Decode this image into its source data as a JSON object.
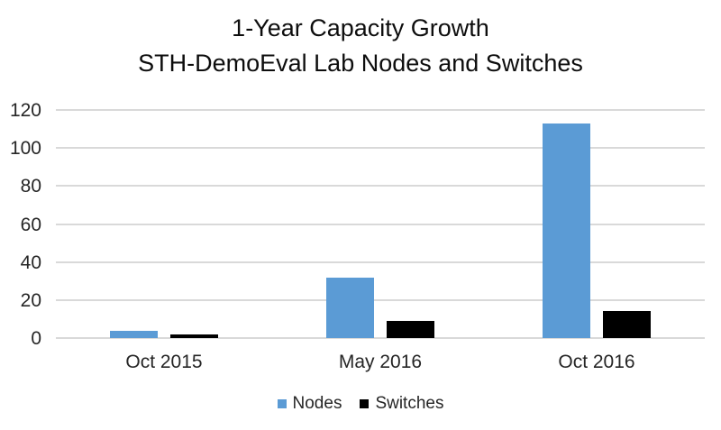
{
  "title": {
    "line1": "1-Year Capacity Growth",
    "line2": "STH-DemoEval Lab Nodes and Switches"
  },
  "chart_data": {
    "type": "bar",
    "title": "1-Year Capacity Growth STH-DemoEval Lab Nodes and Switches",
    "categories": [
      "Oct 2015",
      "May 2016",
      "Oct 2016"
    ],
    "series": [
      {
        "name": "Nodes",
        "color": "#5b9bd5",
        "values": [
          4,
          32,
          113
        ]
      },
      {
        "name": "Switches",
        "color": "#000000",
        "values": [
          2,
          9,
          14
        ]
      }
    ],
    "xlabel": "",
    "ylabel": "",
    "ylim": [
      0,
      120
    ],
    "yticks": [
      0,
      20,
      40,
      60,
      80,
      100,
      120
    ],
    "grid": true,
    "gridline_color": "#d9d9d9",
    "text_color": "#262626",
    "legend_position": "bottom"
  }
}
